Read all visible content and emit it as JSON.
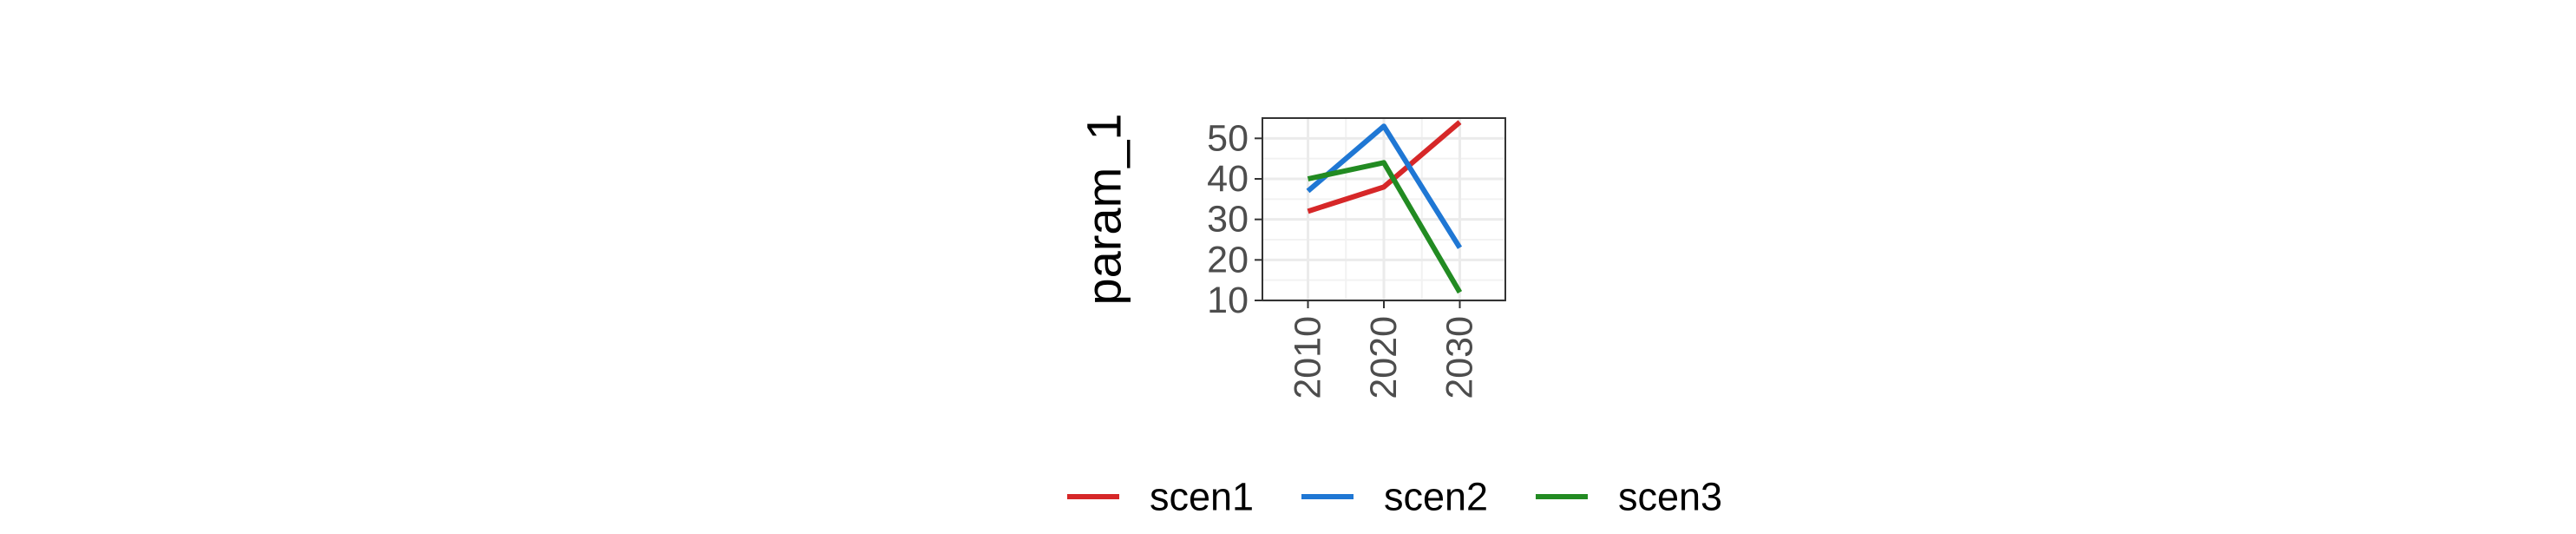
{
  "chart_data": {
    "type": "line",
    "title": "",
    "xlabel": "",
    "ylabel": "param_1",
    "x": [
      2010,
      2020,
      2030
    ],
    "x_tick_labels": [
      "2010",
      "2020",
      "2030"
    ],
    "y_ticks": [
      10,
      20,
      30,
      40,
      50
    ],
    "y_tick_labels": [
      "10",
      "20",
      "30",
      "40",
      "50"
    ],
    "xlim": [
      2004,
      2036
    ],
    "ylim": [
      10,
      55
    ],
    "grid": true,
    "legend_position": "bottom",
    "series": [
      {
        "name": "scen1",
        "color": "#d62728",
        "values": [
          32,
          38,
          54
        ]
      },
      {
        "name": "scen2",
        "color": "#1f77d4",
        "values": [
          37,
          53,
          23
        ]
      },
      {
        "name": "scen3",
        "color": "#228b22",
        "values": [
          40,
          44,
          12
        ]
      }
    ]
  }
}
